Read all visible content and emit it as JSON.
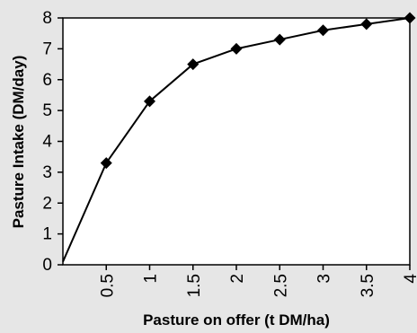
{
  "chart_data": {
    "type": "line",
    "title": "",
    "xlabel": "Pasture on offer (t DM/ha)",
    "ylabel": "Pasture Intake (DM/day)",
    "xlim": [
      0,
      4
    ],
    "ylim": [
      0,
      8
    ],
    "x_ticks": [
      "0.5",
      "1",
      "1.5",
      "2",
      "2.5",
      "3",
      "3.5",
      "4"
    ],
    "x_tick_values": [
      0.5,
      1,
      1.5,
      2,
      2.5,
      3,
      3.5,
      4
    ],
    "y_ticks": [
      "0",
      "1",
      "2",
      "3",
      "4",
      "5",
      "6",
      "7",
      "8"
    ],
    "y_tick_values": [
      0,
      1,
      2,
      3,
      4,
      5,
      6,
      7,
      8
    ],
    "grid": false,
    "legend": "none",
    "series": [
      {
        "x": [
          0,
          0.5,
          1,
          1.5,
          2,
          2.5,
          3,
          3.5,
          4
        ],
        "y": [
          0.1,
          3.3,
          5.3,
          6.5,
          7.0,
          7.3,
          7.6,
          7.8,
          8.0
        ],
        "color": "#000000",
        "marker": "diamond",
        "marked": [
          false,
          true,
          true,
          true,
          true,
          true,
          true,
          true,
          true
        ]
      }
    ],
    "colors": {
      "background": "#e6e6e6",
      "plot_area": "#ffffff",
      "line": "#000000"
    }
  }
}
